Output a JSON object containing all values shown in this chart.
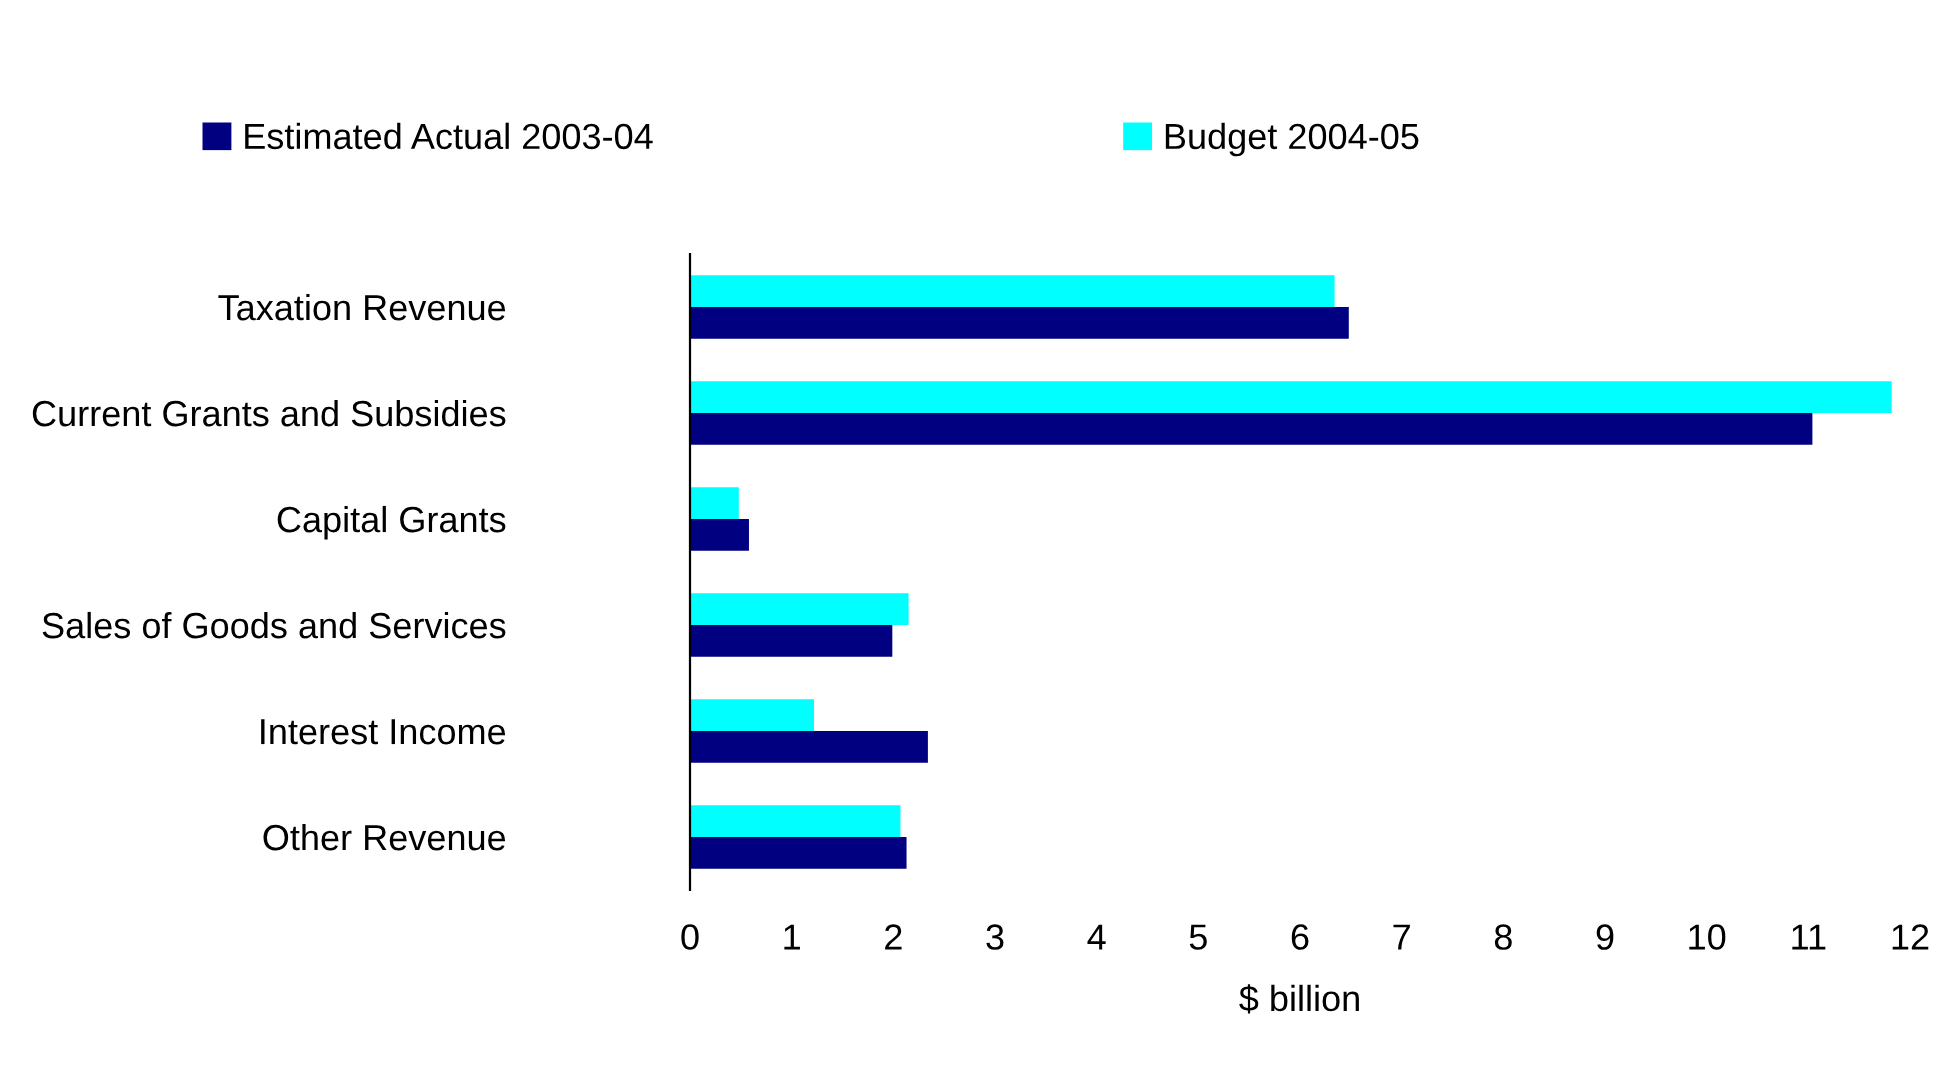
{
  "chart_data": {
    "type": "bar",
    "orientation": "horizontal",
    "xlabel": "$ billion",
    "categories": [
      "Taxation Revenue",
      "Current Grants and Subsidies",
      "Capital Grants",
      "Sales of Goods and Services",
      "Interest Income",
      "Other Revenue"
    ],
    "series": [
      {
        "name": "Estimated Actual 2003-04",
        "color": "#000080",
        "values": [
          6.48,
          11.04,
          0.58,
          1.99,
          2.34,
          2.13
        ]
      },
      {
        "name": "Budget 2004-05",
        "color": "#00ffff",
        "values": [
          6.34,
          11.82,
          0.48,
          2.15,
          1.22,
          2.07
        ]
      }
    ],
    "xlim": [
      0,
      12
    ],
    "xticks": [
      0,
      1,
      2,
      3,
      4,
      5,
      6,
      7,
      8,
      9,
      10,
      11,
      12
    ],
    "grid": false,
    "legend": "top"
  }
}
